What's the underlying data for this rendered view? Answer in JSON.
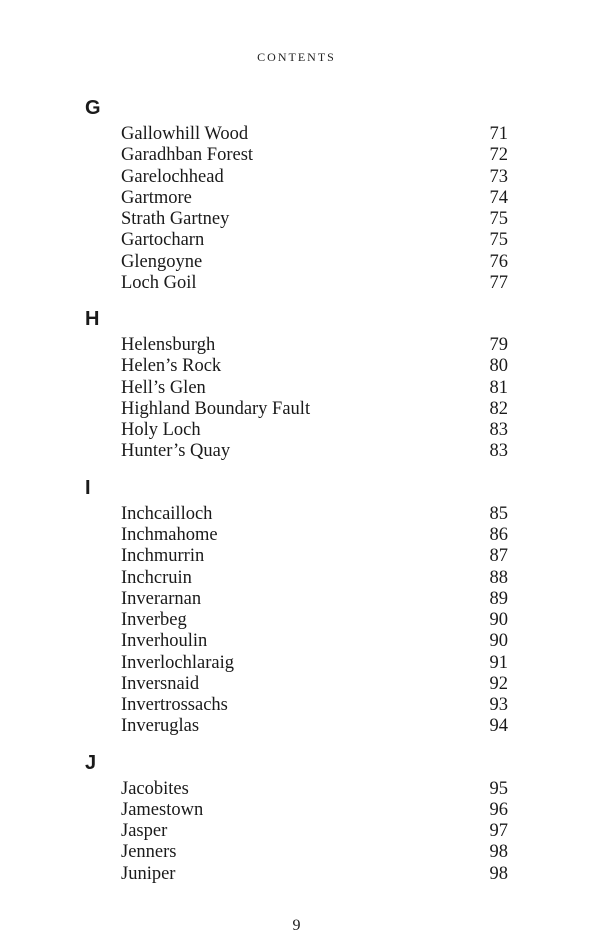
{
  "header": "CONTENTS",
  "sections": [
    {
      "letter": "G",
      "entries": [
        {
          "name": "Gallowhill Wood",
          "page": "71"
        },
        {
          "name": "Garadhban Forest",
          "page": "72"
        },
        {
          "name": "Garelochhead",
          "page": "73"
        },
        {
          "name": "Gartmore",
          "page": "74"
        },
        {
          "name": "Strath Gartney",
          "page": "75"
        },
        {
          "name": "Gartocharn",
          "page": "75"
        },
        {
          "name": "Glengoyne",
          "page": "76"
        },
        {
          "name": "Loch Goil",
          "page": "77"
        }
      ]
    },
    {
      "letter": "H",
      "entries": [
        {
          "name": "Helensburgh",
          "page": "79"
        },
        {
          "name": "Helen’s Rock",
          "page": "80"
        },
        {
          "name": "Hell’s Glen",
          "page": "81"
        },
        {
          "name": "Highland Boundary Fault",
          "page": "82"
        },
        {
          "name": "Holy Loch",
          "page": "83"
        },
        {
          "name": "Hunter’s Quay",
          "page": "83"
        }
      ]
    },
    {
      "letter": "I",
      "entries": [
        {
          "name": "Inchcailloch",
          "page": "85"
        },
        {
          "name": "Inchmahome",
          "page": "86"
        },
        {
          "name": "Inchmurrin",
          "page": "87"
        },
        {
          "name": "Inchcruin",
          "page": "88"
        },
        {
          "name": "Inverarnan",
          "page": "89"
        },
        {
          "name": "Inverbeg",
          "page": "90"
        },
        {
          "name": "Inverhoulin",
          "page": "90"
        },
        {
          "name": "Inverlochlaraig",
          "page": "91"
        },
        {
          "name": "Inversnaid",
          "page": "92"
        },
        {
          "name": "Invertrossachs",
          "page": "93"
        },
        {
          "name": "Inveruglas",
          "page": "94"
        }
      ]
    },
    {
      "letter": "J",
      "entries": [
        {
          "name": "Jacobites",
          "page": "95"
        },
        {
          "name": "Jamestown",
          "page": "96"
        },
        {
          "name": "Jasper",
          "page": "97"
        },
        {
          "name": "Jenners",
          "page": "98"
        },
        {
          "name": "Juniper",
          "page": "98"
        }
      ]
    }
  ],
  "pageNumber": "9",
  "colors": {
    "background": "#ffffff",
    "text": "#1a1a1a"
  },
  "typography": {
    "body_family": "Garamond/Georgia serif",
    "header_size_pt": 9,
    "letter_size_pt": 15,
    "entry_size_pt": 14,
    "pagenum_size_pt": 12
  }
}
